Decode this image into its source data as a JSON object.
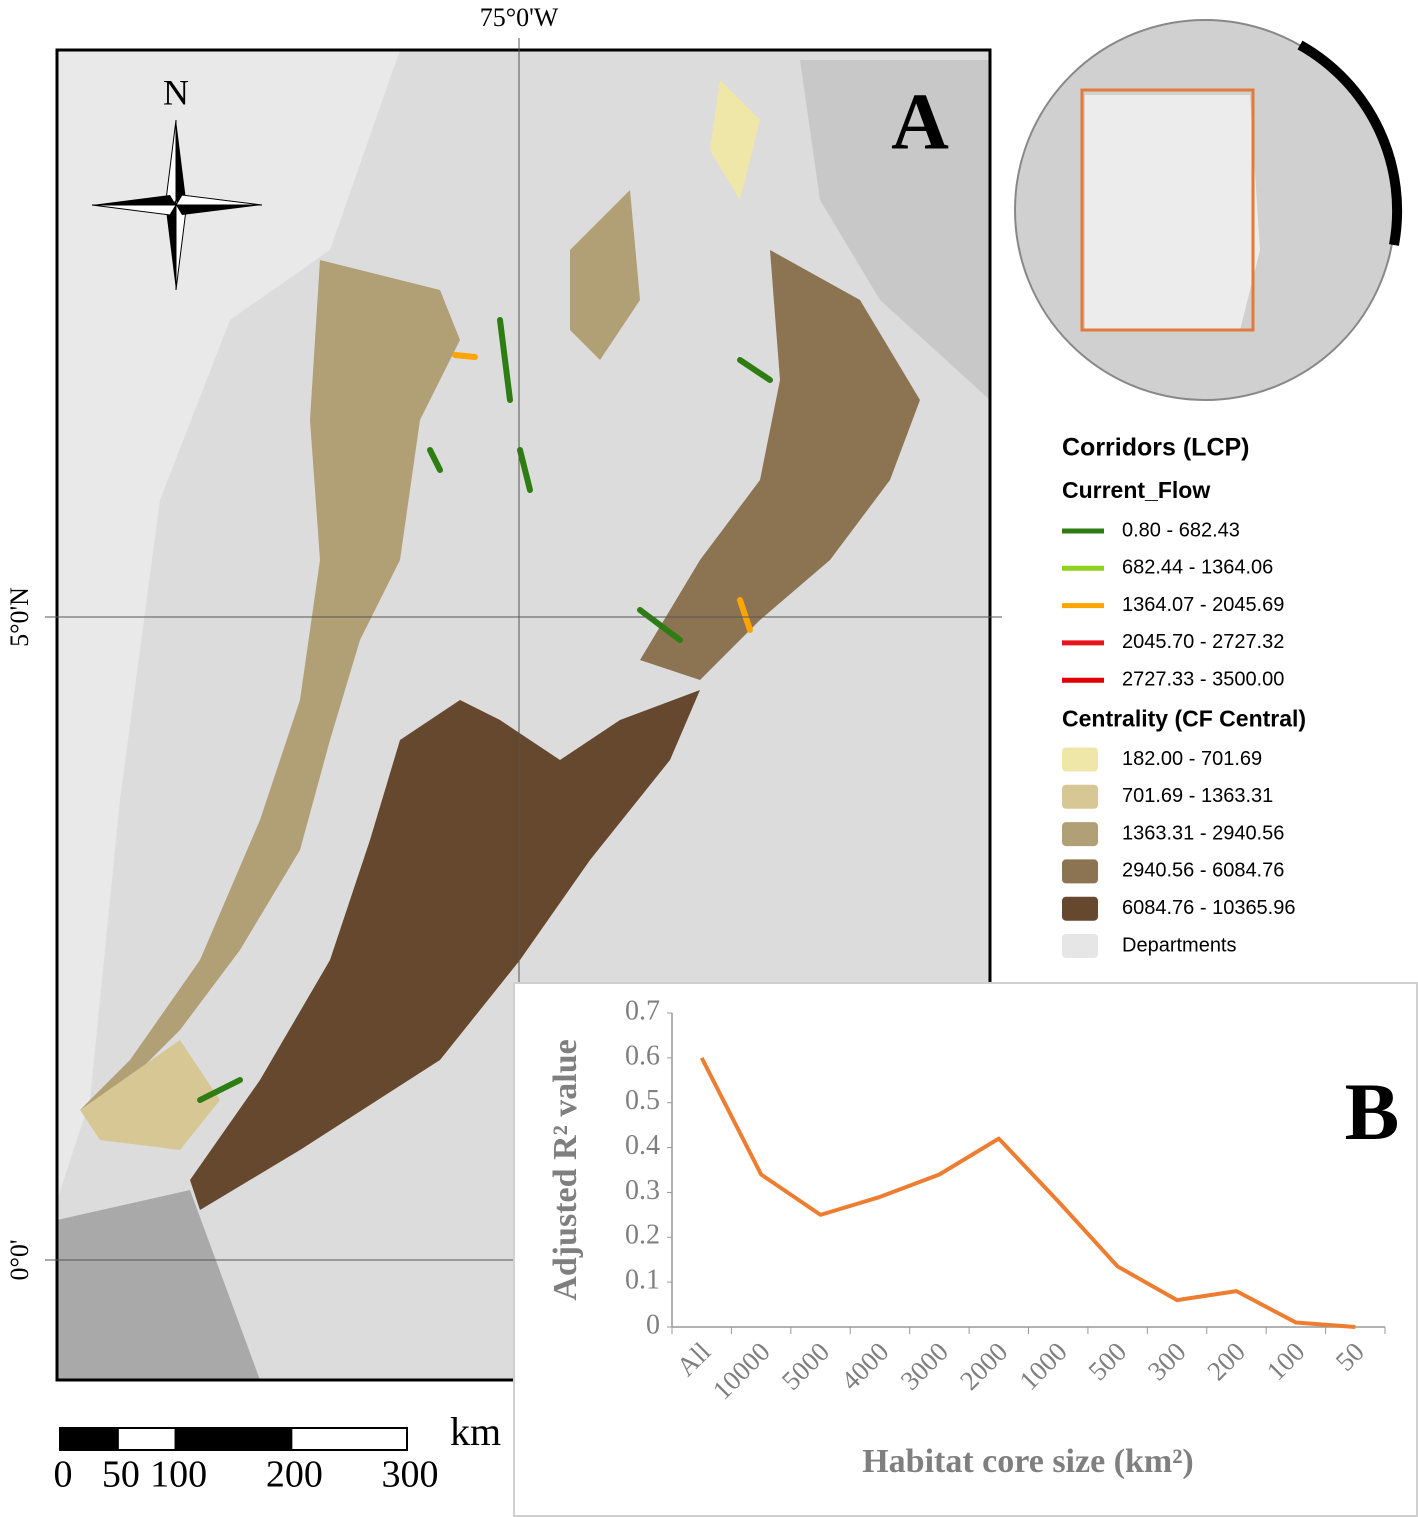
{
  "map": {
    "panel_label": "A",
    "north_label": "N",
    "lon_label": "75°0'W",
    "lat_labels": [
      "5°0'N",
      "0°0'"
    ],
    "scale": {
      "unit": "km",
      "ticks": [
        0,
        50,
        100,
        200,
        300
      ]
    }
  },
  "legend": {
    "title": "Corridors (LCP)",
    "groups": [
      {
        "title": "Current_Flow",
        "items": [
          {
            "label": "0.80 - 682.43",
            "color": "#2e7d12"
          },
          {
            "label": "682.44 - 1364.06",
            "color": "#8fd11e"
          },
          {
            "label": "1364.07 - 2045.69",
            "color": "#ffa500"
          },
          {
            "label": "2045.70 - 2727.32",
            "color": "#e8141b"
          },
          {
            "label": "2727.33 - 3500.00",
            "color": "#e00000"
          }
        ]
      },
      {
        "title": "Centrality (CF Central)",
        "items": [
          {
            "label": "182.00 - 701.69",
            "color": "#efe7a8"
          },
          {
            "label": "701.69 - 1363.31",
            "color": "#d6c794"
          },
          {
            "label": "1363.31 - 2940.56",
            "color": "#b19f76"
          },
          {
            "label": "2940.56 - 6084.76",
            "color": "#8c7352"
          },
          {
            "label": "6084.76 - 10365.96",
            "color": "#66482f"
          },
          {
            "label": "Departments",
            "color": "#e6e6e6"
          }
        ]
      }
    ]
  },
  "chart_data": {
    "type": "line",
    "panel_label": "B",
    "x_label": "Habitat core size (km²)",
    "y_label": "Adjusted R² value",
    "categories": [
      "All",
      "10000",
      "5000",
      "4000",
      "3000",
      "2000",
      "1000",
      "500",
      "300",
      "200",
      "100",
      "50"
    ],
    "series": [
      {
        "color": "#ed7d31",
        "values": [
          0.6,
          0.34,
          0.25,
          0.29,
          0.34,
          0.42,
          0.28,
          0.135,
          0.06,
          0.08,
          0.01,
          0
        ]
      }
    ],
    "ylim": [
      0,
      0.7
    ],
    "yticks": [
      0,
      0.1,
      0.2,
      0.3,
      0.4,
      0.5,
      0.6,
      0.7
    ]
  }
}
